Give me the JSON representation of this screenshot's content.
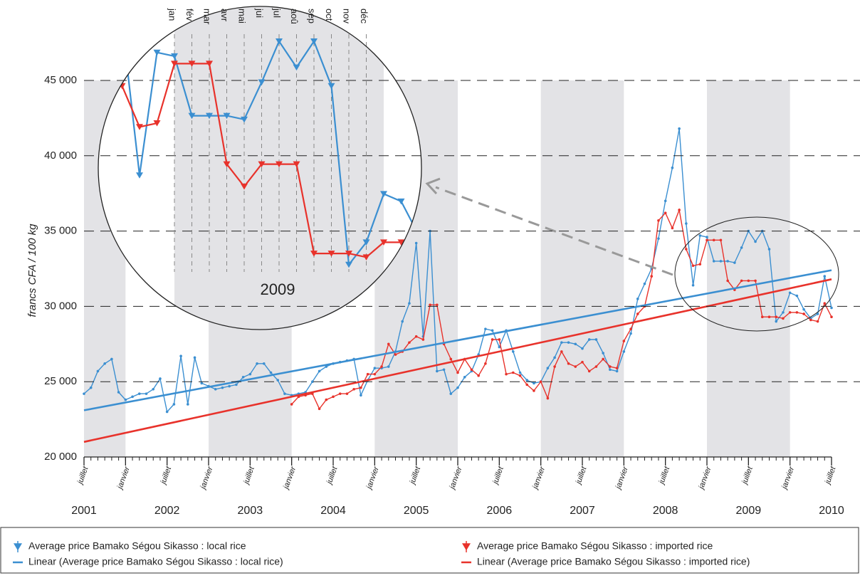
{
  "chart_data": {
    "type": "line",
    "ylabel": "francs CFA / 100 kg",
    "ylim": [
      20000,
      45000
    ],
    "yticks": [
      {
        "value": 20000,
        "label": "20 000"
      },
      {
        "value": 25000,
        "label": "25 000"
      },
      {
        "value": 30000,
        "label": "30 000"
      },
      {
        "value": 35000,
        "label": "35 000"
      },
      {
        "value": 40000,
        "label": "40 000"
      },
      {
        "value": 45000,
        "label": "45 000"
      }
    ],
    "grid": true,
    "x": [
      "2001-07",
      "2001-08",
      "2001-09",
      "2001-10",
      "2001-11",
      "2001-12",
      "2002-01",
      "2002-02",
      "2002-03",
      "2002-04",
      "2002-05",
      "2002-06",
      "2002-07",
      "2002-08",
      "2002-09",
      "2002-10",
      "2002-11",
      "2002-12",
      "2003-01",
      "2003-02",
      "2003-03",
      "2003-04",
      "2003-05",
      "2003-06",
      "2003-07",
      "2003-08",
      "2003-09",
      "2003-10",
      "2003-11",
      "2003-12",
      "2004-01",
      "2004-02",
      "2004-03",
      "2004-04",
      "2004-05",
      "2004-06",
      "2004-07",
      "2004-08",
      "2004-09",
      "2004-10",
      "2004-11",
      "2004-12",
      "2005-01",
      "2005-02",
      "2005-03",
      "2005-04",
      "2005-05",
      "2005-06",
      "2005-07",
      "2005-08",
      "2005-09",
      "2005-10",
      "2005-11",
      "2005-12",
      "2006-01",
      "2006-02",
      "2006-03",
      "2006-04",
      "2006-05",
      "2006-06",
      "2006-07",
      "2006-08",
      "2006-09",
      "2006-10",
      "2006-11",
      "2006-12",
      "2007-01",
      "2007-02",
      "2007-03",
      "2007-04",
      "2007-05",
      "2007-06",
      "2007-07",
      "2007-08",
      "2007-09",
      "2007-10",
      "2007-11",
      "2007-12",
      "2008-01",
      "2008-02",
      "2008-03",
      "2008-04",
      "2008-05",
      "2008-06",
      "2008-07",
      "2008-08",
      "2008-09",
      "2008-10",
      "2008-11",
      "2008-12",
      "2009-01",
      "2009-02",
      "2009-03",
      "2009-04",
      "2009-05",
      "2009-06",
      "2009-07",
      "2009-08",
      "2009-09",
      "2009-10",
      "2009-11",
      "2009-12",
      "2010-01",
      "2010-02",
      "2010-03",
      "2010-04",
      "2010-05",
      "2010-06",
      "2010-07"
    ],
    "xticks": [
      {
        "value": "2001-07",
        "label": "juillet"
      },
      {
        "value": "2002-01",
        "label": "janvier"
      },
      {
        "value": "2002-07",
        "label": "juillet"
      },
      {
        "value": "2003-01",
        "label": "janvier"
      },
      {
        "value": "2003-07",
        "label": "juillet"
      },
      {
        "value": "2004-01",
        "label": "janvier"
      },
      {
        "value": "2004-07",
        "label": "juillet"
      },
      {
        "value": "2005-01",
        "label": "janvier"
      },
      {
        "value": "2005-07",
        "label": "juillet"
      },
      {
        "value": "2006-01",
        "label": "janvier"
      },
      {
        "value": "2006-07",
        "label": "juillet"
      },
      {
        "value": "2007-01",
        "label": "janvier"
      },
      {
        "value": "2007-07",
        "label": "juillet"
      },
      {
        "value": "2008-01",
        "label": "janvier"
      },
      {
        "value": "2008-07",
        "label": "juillet"
      },
      {
        "value": "2009-01",
        "label": "janvier"
      },
      {
        "value": "2009-07",
        "label": "juillet"
      },
      {
        "value": "2010-01",
        "label": "janvier"
      },
      {
        "value": "2010-07",
        "label": "juillet"
      }
    ],
    "year_labels": [
      {
        "value": "2001-07",
        "label": "2001"
      },
      {
        "value": "2002-07",
        "label": "2002"
      },
      {
        "value": "2003-07",
        "label": "2003"
      },
      {
        "value": "2004-07",
        "label": "2004"
      },
      {
        "value": "2005-07",
        "label": "2005"
      },
      {
        "value": "2006-07",
        "label": "2006"
      },
      {
        "value": "2007-07",
        "label": "2007"
      },
      {
        "value": "2008-07",
        "label": "2008"
      },
      {
        "value": "2009-07",
        "label": "2009"
      },
      {
        "value": "2010-07",
        "label": "2010"
      }
    ],
    "bands": [
      [
        "2001-07",
        "2002-01"
      ],
      [
        "2003-01",
        "2004-01"
      ],
      [
        "2005-01",
        "2006-01"
      ],
      [
        "2007-01",
        "2008-01"
      ],
      [
        "2009-01",
        "2010-01"
      ]
    ],
    "series": [
      {
        "name": "Average price Bamako Ségou Sikasso : local rice",
        "color": "#3b8fd1",
        "marker": "triangle",
        "values": [
          24200,
          24600,
          25700,
          26200,
          26500,
          24300,
          23800,
          24000,
          24200,
          24200,
          24500,
          25200,
          23000,
          23500,
          26700,
          23500,
          26600,
          24900,
          24700,
          24500,
          24600,
          24700,
          24800,
          25300,
          25500,
          26200,
          26200,
          25600,
          25100,
          24200,
          24100,
          24200,
          24300,
          25000,
          25700,
          26000,
          26200,
          26300,
          26400,
          26500,
          24100,
          25100,
          25900,
          25900,
          26000,
          27000,
          29000,
          30200,
          34200,
          28000,
          35000,
          25700,
          25800,
          24200,
          24600,
          25300,
          25700,
          26800,
          28500,
          28400,
          27300,
          28400,
          27000,
          25600,
          25100,
          24900,
          25000,
          25900,
          26600,
          27600,
          27600,
          27500,
          27200,
          27800,
          27800,
          26900,
          25800,
          25700,
          27000,
          28200,
          30500,
          31500,
          32500,
          34500,
          37000,
          39200,
          41800,
          35500,
          31400,
          34700,
          34600,
          33000,
          33000,
          33000,
          32900,
          33900,
          35000,
          34300,
          35000,
          33800,
          29000,
          29600,
          30900,
          30700,
          29800,
          29200,
          29500,
          32000,
          29900
        ]
      },
      {
        "name": "Average price Bamako Ségou Sikasso : imported rice",
        "color": "#e8322b",
        "marker": "triangle",
        "values": [
          null,
          null,
          null,
          null,
          null,
          null,
          null,
          null,
          null,
          null,
          null,
          null,
          null,
          null,
          null,
          null,
          null,
          null,
          null,
          null,
          null,
          null,
          null,
          null,
          null,
          null,
          null,
          null,
          null,
          null,
          23500,
          24000,
          24100,
          24200,
          23200,
          23800,
          24000,
          24200,
          24200,
          24500,
          24600,
          25500,
          25500,
          26000,
          27500,
          26800,
          27000,
          27600,
          28000,
          27800,
          30100,
          30100,
          27500,
          26500,
          25600,
          26500,
          25800,
          25400,
          26200,
          27800,
          27800,
          25500,
          25600,
          25400,
          24800,
          24400,
          25000,
          23900,
          26000,
          27000,
          26200,
          26000,
          26300,
          25700,
          26000,
          26500,
          26000,
          25900,
          27700,
          28500,
          29500,
          30000,
          32000,
          35700,
          36200,
          35200,
          36400,
          33800,
          32700,
          32800,
          34400,
          34400,
          34400,
          31700,
          31100,
          31700,
          31700,
          31700,
          29300,
          29300,
          29300,
          29200,
          29600,
          29600,
          29500,
          29100,
          29000,
          30200,
          29300
        ]
      },
      {
        "name": "Linear (Average price Bamako Ségou Sikasso : local rice)",
        "color": "#3b8fd1",
        "x": [
          "2001-07",
          "2010-07"
        ],
        "values": [
          23100,
          32400
        ]
      },
      {
        "name": "Linear (Average price Bamako Ségou Sikasso : imported rice)",
        "color": "#e8322b",
        "x": [
          "2001-07",
          "2010-07"
        ],
        "values": [
          21000,
          31800
        ]
      }
    ],
    "inset": {
      "months": [
        "jan",
        "fév",
        "mar",
        "avr",
        "mai",
        "jui",
        "jul",
        "aoû",
        "sep",
        "oct",
        "nov",
        "déc"
      ],
      "label": "2009"
    }
  }
}
